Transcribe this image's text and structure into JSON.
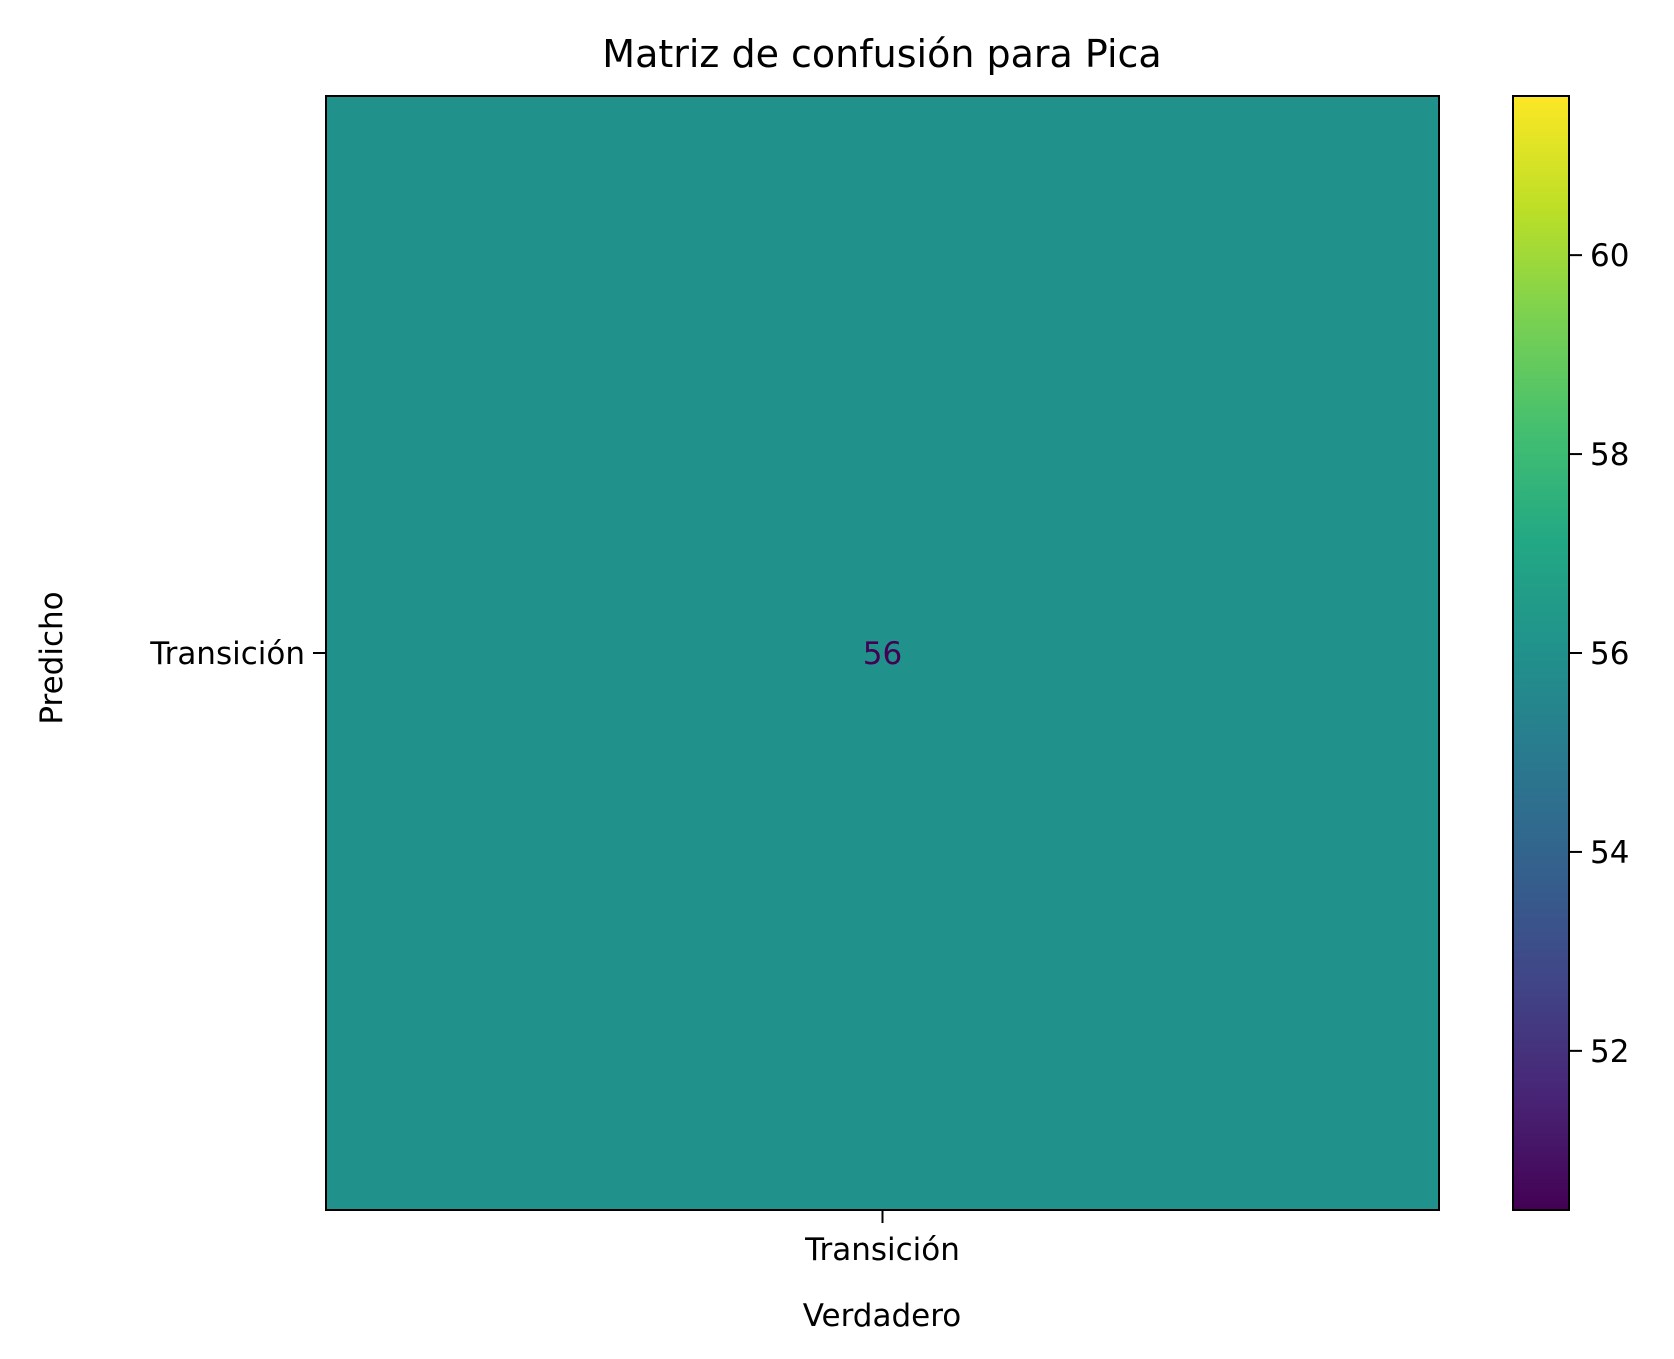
{
  "chart_data": {
    "type": "heatmap",
    "title": "Matriz de confusión para Pica",
    "xlabel": "Verdadero",
    "ylabel": "Predicho",
    "x_categories": [
      "Transición"
    ],
    "y_categories": [
      "Transición"
    ],
    "values": [
      [
        56
      ]
    ],
    "colormap": "viridis",
    "colorbar": {
      "range": [
        50.4,
        61.6
      ],
      "ticks": [
        52,
        54,
        56,
        58,
        60
      ]
    },
    "colors": {
      "cell": "#21918c",
      "cell_text": "#440154"
    }
  }
}
